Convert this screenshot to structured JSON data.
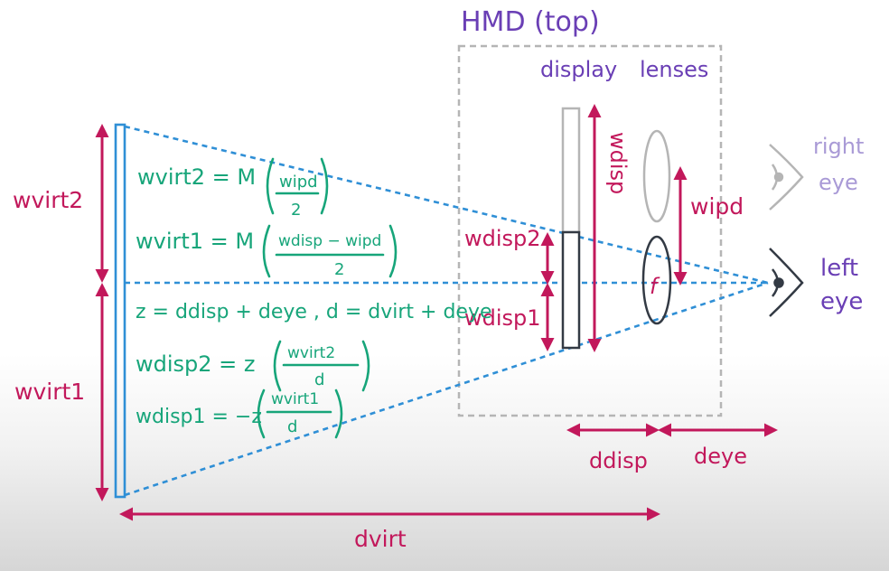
{
  "hmd_title": "HMD (top)",
  "labels": {
    "display": "display",
    "lenses": "lenses",
    "right_eye_1": "right",
    "right_eye_2": "eye",
    "left_eye_1": "left",
    "left_eye_2": "eye",
    "w_virt2": "wvirt2",
    "w_virt1": "wvirt1",
    "w_disp": "wdisp",
    "w_ipd": "wipd",
    "w_disp2": "wdisp2",
    "w_disp1": "wdisp1",
    "f": "f",
    "d_disp": "ddisp",
    "d_eye": "deye",
    "d_virt": "dvirt"
  },
  "equations": {
    "eq1_lhs": "wvirt2 = M",
    "eq1_num": "wipd",
    "eq1_den": "2",
    "eq2_lhs": "wvirt1 = M",
    "eq2_num": "wdisp − wipd",
    "eq2_den": "2",
    "eq3": "z = ddisp + deye ,  d = dvirt + deye",
    "eq4_lhs": "wdisp2 = z",
    "eq4_num": "wvirt2",
    "eq4_den": "d",
    "eq5_lhs": "wdisp1 = −z",
    "eq5_num": "wvirt1",
    "eq5_den": "d"
  },
  "colors": {
    "magenta": "#c2185b",
    "green": "#17a57a",
    "purple": "#6a3fb5",
    "blue": "#2f8fd6",
    "gray": "#b5b5b5",
    "dark": "#333a44"
  }
}
